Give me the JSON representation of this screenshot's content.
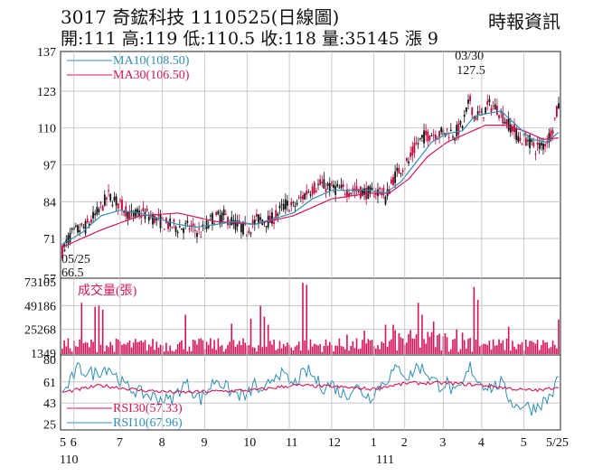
{
  "header": {
    "title": "3017  奇鋐科技 1110525(日線圖)",
    "source": "時報資訊",
    "quote": "開:111 高:119 低:110.5 收:118 量:35145 漲 9"
  },
  "colors": {
    "up": "#c4003a",
    "down": "#111111",
    "ma10": "#2f8fb5",
    "ma30": "#d4145a",
    "volume": "#d4145a",
    "rsi30": "#d4145a",
    "rsi10": "#2f8fb5",
    "grid": "#bdbdbd"
  },
  "chart_data": [
    {
      "type": "candlestick",
      "panel": "price",
      "legend": [
        {
          "label": "MA10(108.50)",
          "color": "#2f8fb5"
        },
        {
          "label": "MA30(106.50)",
          "color": "#d4145a"
        }
      ],
      "y_ticks": [
        "137",
        "123",
        "110",
        "97",
        "84",
        "71",
        "57"
      ],
      "ylim": [
        57,
        137
      ],
      "annotations": [
        {
          "label": "03/30",
          "value": "127.5",
          "kind": "high"
        },
        {
          "label": "05/25",
          "value": "66.5",
          "kind": "low"
        }
      ],
      "x_ticks": [
        "5",
        "6",
        "7",
        "8",
        "9",
        "10",
        "11",
        "12",
        "1",
        "2",
        "3",
        "4",
        "5",
        "5/25"
      ],
      "x_year_labels": [
        "110",
        "111"
      ],
      "close_path": [
        [
          0,
          66.5
        ],
        [
          4,
          72
        ],
        [
          8,
          74
        ],
        [
          12,
          75
        ],
        [
          18,
          80
        ],
        [
          24,
          86
        ],
        [
          30,
          83
        ],
        [
          36,
          79
        ],
        [
          42,
          80
        ],
        [
          48,
          78
        ],
        [
          54,
          76
        ],
        [
          60,
          75
        ],
        [
          66,
          75
        ],
        [
          72,
          73
        ],
        [
          78,
          78
        ],
        [
          84,
          79
        ],
        [
          90,
          76
        ],
        [
          96,
          74
        ],
        [
          102,
          78
        ],
        [
          108,
          77
        ],
        [
          112,
          80
        ],
        [
          116,
          83
        ],
        [
          120,
          82
        ],
        [
          124,
          85
        ],
        [
          128,
          88
        ],
        [
          134,
          90
        ],
        [
          140,
          89
        ],
        [
          146,
          88
        ],
        [
          152,
          88
        ],
        [
          160,
          87
        ],
        [
          166,
          88
        ],
        [
          168,
          85
        ],
        [
          172,
          92
        ],
        [
          176,
          96
        ],
        [
          180,
          98
        ],
        [
          184,
          104
        ],
        [
          188,
          107
        ],
        [
          192,
          108
        ],
        [
          196,
          108
        ],
        [
          200,
          109
        ],
        [
          204,
          108
        ],
        [
          208,
          111
        ],
        [
          212,
          120
        ],
        [
          214,
          114
        ],
        [
          218,
          115
        ],
        [
          222,
          118
        ],
        [
          226,
          117
        ],
        [
          230,
          113
        ],
        [
          234,
          110
        ],
        [
          238,
          106
        ],
        [
          242,
          106
        ],
        [
          246,
          103
        ],
        [
          250,
          104
        ],
        [
          254,
          108
        ],
        [
          258,
          118
        ]
      ],
      "ma10_path": [
        [
          0,
          69
        ],
        [
          10,
          73
        ],
        [
          20,
          79
        ],
        [
          30,
          81
        ],
        [
          40,
          80
        ],
        [
          50,
          78
        ],
        [
          60,
          76
        ],
        [
          70,
          75
        ],
        [
          80,
          76
        ],
        [
          90,
          77
        ],
        [
          100,
          76
        ],
        [
          110,
          78
        ],
        [
          120,
          80
        ],
        [
          130,
          85
        ],
        [
          140,
          88
        ],
        [
          150,
          88
        ],
        [
          160,
          88
        ],
        [
          168,
          87
        ],
        [
          176,
          91
        ],
        [
          184,
          98
        ],
        [
          192,
          105
        ],
        [
          200,
          108
        ],
        [
          208,
          109
        ],
        [
          214,
          114
        ],
        [
          220,
          115
        ],
        [
          228,
          116
        ],
        [
          236,
          111
        ],
        [
          244,
          106
        ],
        [
          252,
          105
        ],
        [
          258,
          108.5
        ]
      ],
      "ma30_path": [
        [
          0,
          68
        ],
        [
          20,
          74
        ],
        [
          40,
          79
        ],
        [
          60,
          80
        ],
        [
          80,
          77
        ],
        [
          100,
          76
        ],
        [
          120,
          79
        ],
        [
          140,
          85
        ],
        [
          160,
          87
        ],
        [
          170,
          87
        ],
        [
          180,
          92
        ],
        [
          190,
          100
        ],
        [
          200,
          105
        ],
        [
          210,
          108
        ],
        [
          220,
          111
        ],
        [
          230,
          111
        ],
        [
          240,
          109
        ],
        [
          250,
          106
        ],
        [
          258,
          106.5
        ]
      ]
    },
    {
      "type": "bar",
      "panel": "volume",
      "legend": [
        {
          "label": "成交量(張)",
          "color": "#d4145a"
        }
      ],
      "y_ticks": [
        "73105",
        "49186",
        "25268",
        "1349"
      ],
      "ylim": [
        1349,
        73105
      ],
      "peaks": [
        [
          10,
          52000
        ],
        [
          17,
          48000
        ],
        [
          19,
          49000
        ],
        [
          21,
          45000
        ],
        [
          64,
          40000
        ],
        [
          88,
          31000
        ],
        [
          98,
          36000
        ],
        [
          103,
          49000
        ],
        [
          105,
          38000
        ],
        [
          107,
          30000
        ],
        [
          125,
          72000
        ],
        [
          127,
          70000
        ],
        [
          148,
          20000
        ],
        [
          157,
          24000
        ],
        [
          168,
          30000
        ],
        [
          172,
          30000
        ],
        [
          185,
          52000
        ],
        [
          187,
          40000
        ],
        [
          193,
          33000
        ],
        [
          205,
          25000
        ],
        [
          214,
          68000
        ],
        [
          216,
          55000
        ],
        [
          232,
          28000
        ],
        [
          251,
          12000
        ],
        [
          258,
          35145
        ]
      ]
    },
    {
      "type": "line",
      "panel": "rsi",
      "legend": [
        {
          "label": "RSI30(57.33)",
          "color": "#d4145a"
        },
        {
          "label": "RSI10(67.96)",
          "color": "#2f8fb5"
        }
      ],
      "y_ticks": [
        "80",
        "61",
        "43",
        "25"
      ],
      "ylim": [
        25,
        80
      ],
      "rsi10_path": [
        [
          0,
          50
        ],
        [
          8,
          72
        ],
        [
          16,
          68
        ],
        [
          24,
          74
        ],
        [
          32,
          58
        ],
        [
          40,
          52
        ],
        [
          48,
          48
        ],
        [
          56,
          45
        ],
        [
          64,
          60
        ],
        [
          72,
          46
        ],
        [
          80,
          64
        ],
        [
          88,
          52
        ],
        [
          96,
          48
        ],
        [
          100,
          60
        ],
        [
          104,
          48
        ],
        [
          108,
          62
        ],
        [
          112,
          70
        ],
        [
          116,
          64
        ],
        [
          120,
          58
        ],
        [
          124,
          66
        ],
        [
          128,
          70
        ],
        [
          132,
          62
        ],
        [
          136,
          56
        ],
        [
          140,
          60
        ],
        [
          144,
          52
        ],
        [
          148,
          50
        ],
        [
          152,
          58
        ],
        [
          156,
          52
        ],
        [
          160,
          48
        ],
        [
          164,
          56
        ],
        [
          168,
          62
        ],
        [
          172,
          70
        ],
        [
          176,
          72
        ],
        [
          180,
          64
        ],
        [
          184,
          74
        ],
        [
          188,
          72
        ],
        [
          192,
          64
        ],
        [
          196,
          58
        ],
        [
          200,
          60
        ],
        [
          204,
          50
        ],
        [
          208,
          58
        ],
        [
          212,
          74
        ],
        [
          216,
          62
        ],
        [
          220,
          58
        ],
        [
          224,
          56
        ],
        [
          228,
          60
        ],
        [
          232,
          48
        ],
        [
          236,
          40
        ],
        [
          240,
          42
        ],
        [
          244,
          38
        ],
        [
          248,
          42
        ],
        [
          252,
          46
        ],
        [
          256,
          55
        ],
        [
          258,
          67.96
        ]
      ],
      "rsi30_path": [
        [
          0,
          52
        ],
        [
          20,
          58
        ],
        [
          40,
          54
        ],
        [
          60,
          52
        ],
        [
          80,
          53
        ],
        [
          100,
          54
        ],
        [
          120,
          58
        ],
        [
          140,
          57
        ],
        [
          160,
          55
        ],
        [
          180,
          60
        ],
        [
          200,
          60
        ],
        [
          220,
          58
        ],
        [
          240,
          54
        ],
        [
          250,
          54
        ],
        [
          258,
          57.33
        ]
      ]
    }
  ]
}
